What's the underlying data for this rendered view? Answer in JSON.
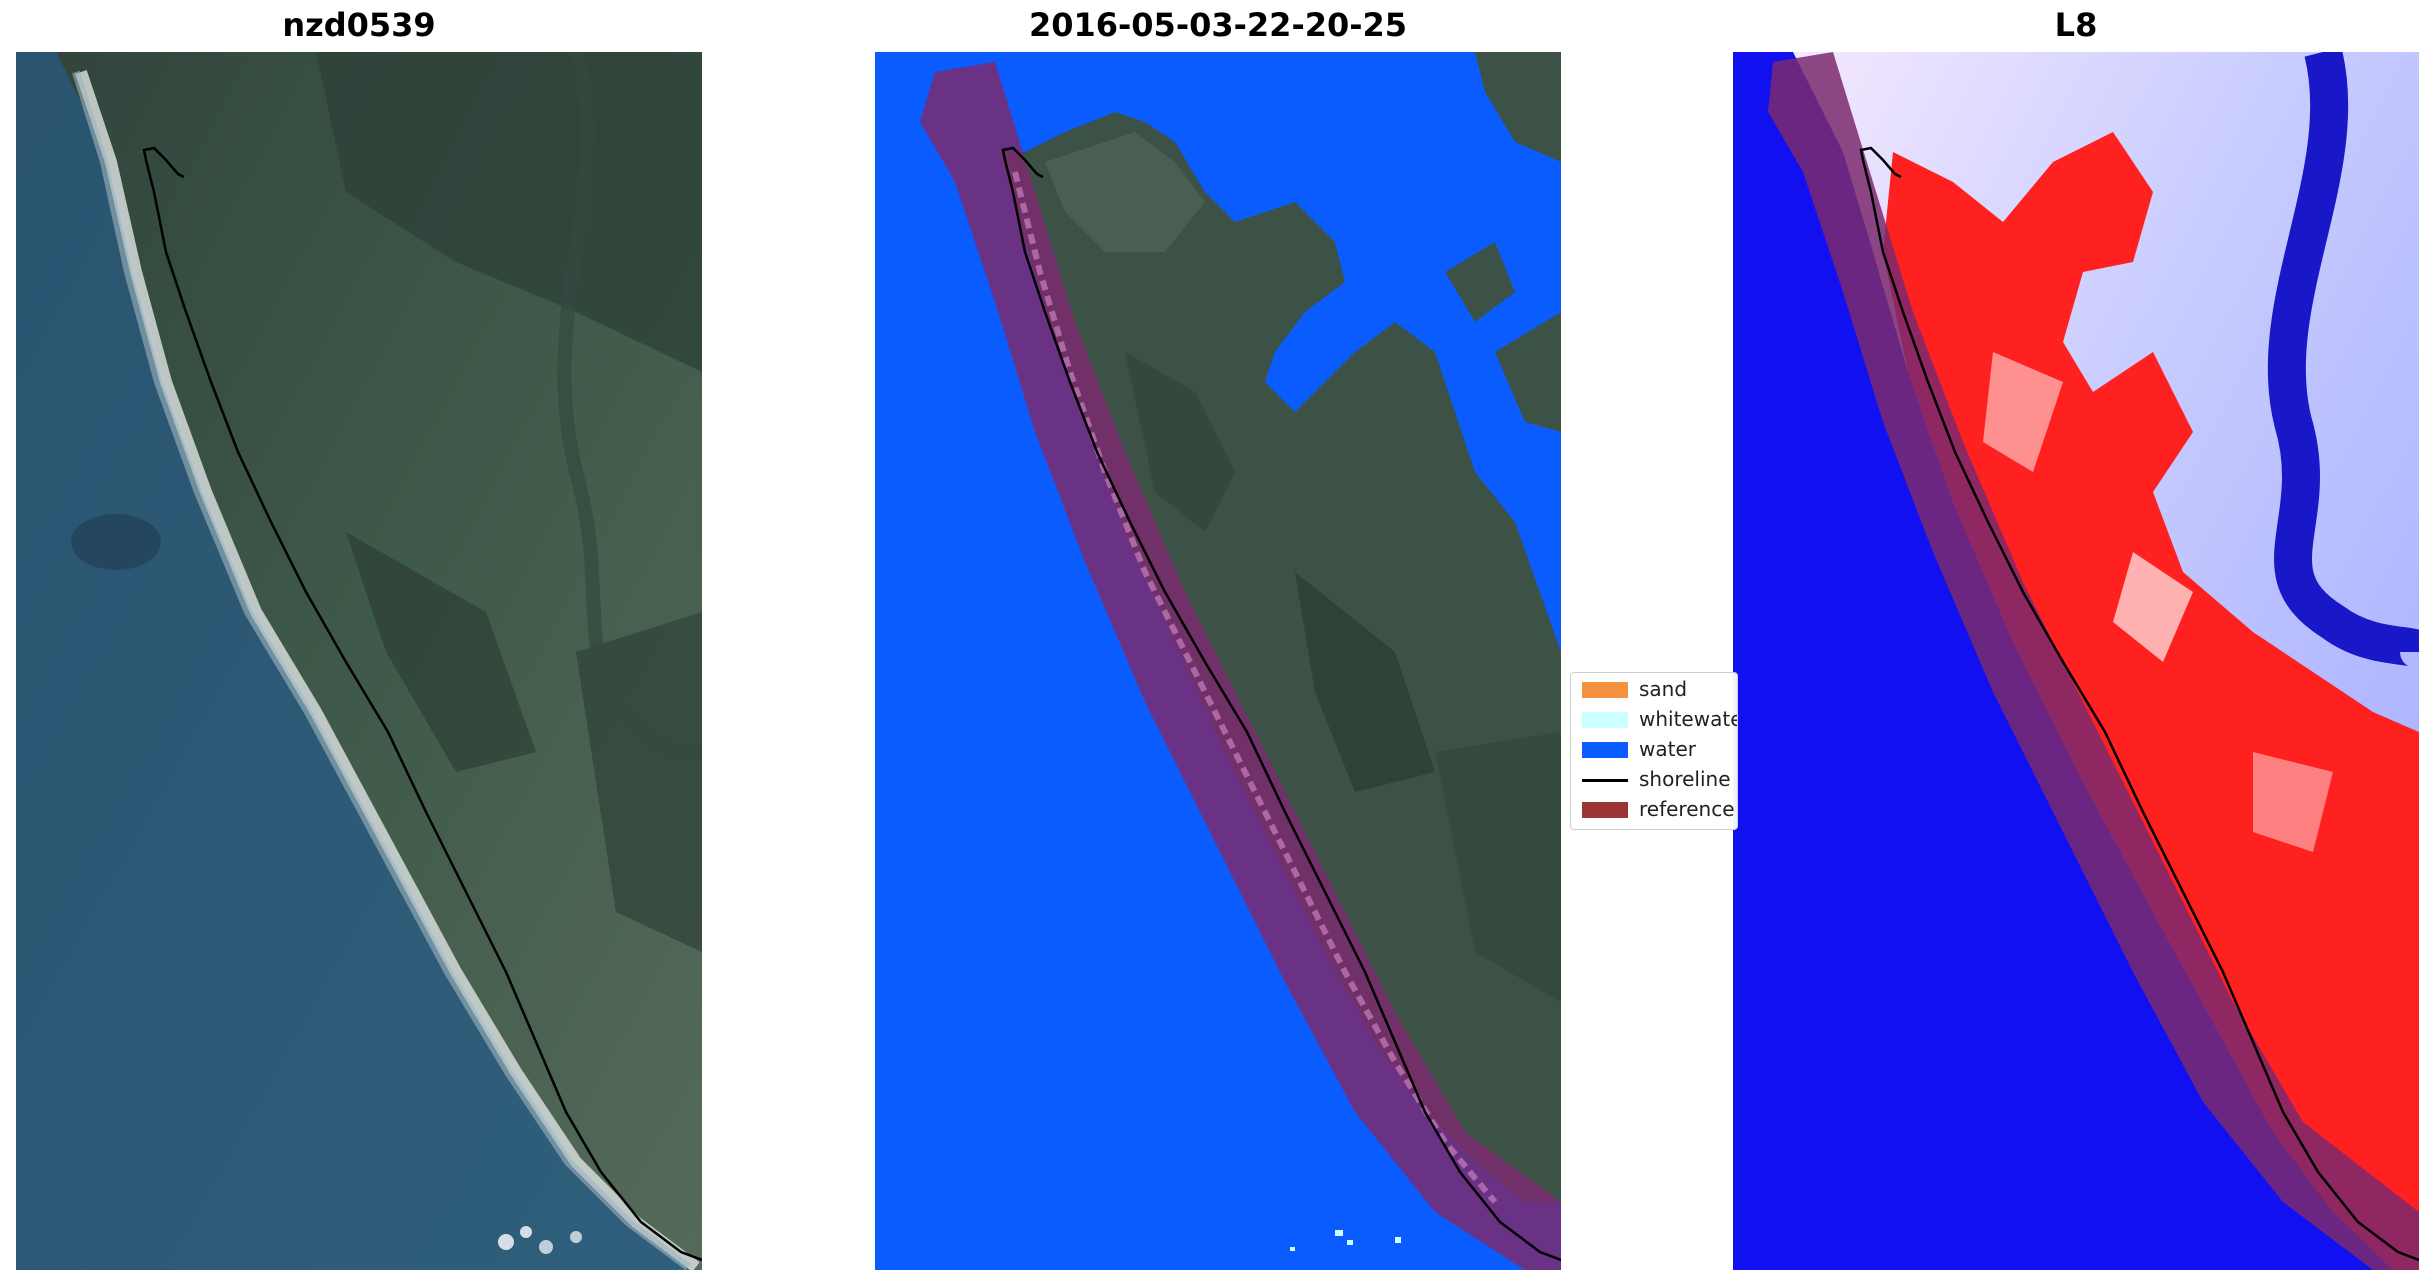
{
  "titles": {
    "left": "nzd0539",
    "middle": "2016-05-03-22-20-25",
    "right": "L8"
  },
  "legend": {
    "items": [
      {
        "label": "sand",
        "color": "#f5923e",
        "kind": "patch"
      },
      {
        "label": "whitewater",
        "color": "#ccffff",
        "kind": "patch"
      },
      {
        "label": "water",
        "color": "#0a5cff",
        "kind": "patch"
      },
      {
        "label": "shoreline",
        "color": "#000000",
        "kind": "line"
      },
      {
        "label": "reference shoreline buffer",
        "color": "#9b3535",
        "kind": "patch"
      }
    ]
  },
  "colors": {
    "sea": "#2d5a7a",
    "land": "#3d5648",
    "water_class": "#0a5cff",
    "buffer": "#7b2a6e",
    "index_water": "#1010f0",
    "index_land": "#ff1a1a"
  }
}
